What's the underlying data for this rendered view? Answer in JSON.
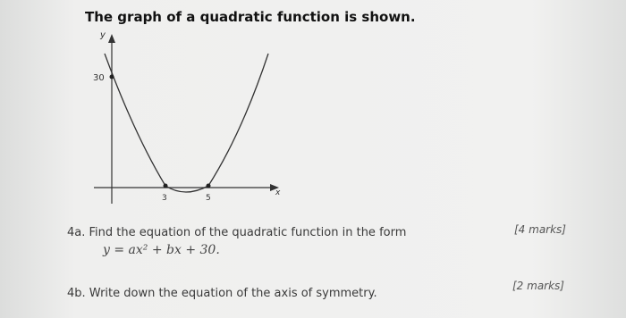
{
  "title": "The graph of a quadratic function is shown.",
  "figure": {
    "y_axis_label": "y",
    "x_axis_label": "x",
    "y_intercept_label": "30",
    "root_labels": [
      "3",
      "5"
    ]
  },
  "questions": [
    {
      "number": "4a.",
      "text": "Find the equation of the quadratic function in the form",
      "formula": "y = ax² + bx + 30.",
      "marks": "[4 marks]"
    },
    {
      "number": "4b.",
      "text": "Write down the equation of the axis of symmetry.",
      "marks": "[2 marks]"
    }
  ]
}
